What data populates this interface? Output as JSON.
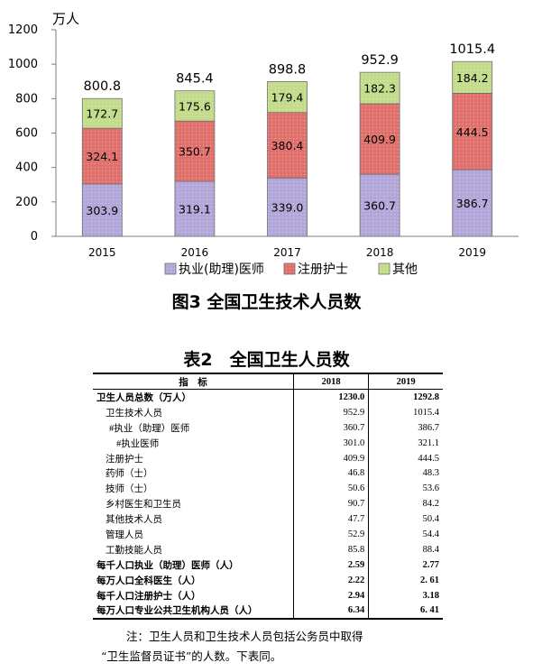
{
  "chart_data": {
    "type": "bar",
    "stacked": true,
    "y_unit": "万人",
    "categories": [
      "2015",
      "2016",
      "2017",
      "2018",
      "2019"
    ],
    "series": [
      {
        "name": "执业(助理)医师",
        "color": "#b3a6d8",
        "values": [
          303.9,
          319.1,
          339.0,
          360.7,
          386.7
        ]
      },
      {
        "name": "注册护士",
        "color": "#e0706c",
        "values": [
          324.1,
          350.7,
          380.4,
          409.9,
          444.5
        ]
      },
      {
        "name": "其他",
        "color": "#c3dc8c",
        "values": [
          172.7,
          175.6,
          179.4,
          182.3,
          184.2
        ]
      }
    ],
    "totals": [
      800.8,
      845.4,
      898.8,
      952.9,
      1015.4
    ],
    "value_labels": [
      [
        "303.9",
        "319.1",
        "339.0",
        "360.7",
        "386.7"
      ],
      [
        "324.1",
        "350.7",
        "380.4",
        "409.9",
        "444.5"
      ],
      [
        "172.7",
        "175.6",
        "179.4",
        "182.3",
        "184.2"
      ]
    ],
    "total_labels": [
      "800.8",
      "845.4",
      "898.8",
      "952.9",
      "1015.4"
    ],
    "ylim": [
      0,
      1200
    ],
    "yticks": [
      0,
      200,
      400,
      600,
      800,
      1000,
      1200
    ],
    "legend_position": "bottom",
    "grid": false,
    "title": "图3  全国卫生技术人员数"
  },
  "table": {
    "title": "表2　全国卫生人员数",
    "header": {
      "label": "指　标",
      "y2018": "2018",
      "y2019": "2019"
    },
    "rows": [
      {
        "name": "卫生人员总数（万人）",
        "v2018": "1230.0",
        "v2019": "1292.8",
        "level": 0
      },
      {
        "name": "卫生技术人员",
        "v2018": "952.9",
        "v2019": "1015.4",
        "level": 1
      },
      {
        "name": "#执业（助理）医师",
        "v2018": "360.7",
        "v2019": "386.7",
        "level": 2
      },
      {
        "name": "#执业医师",
        "v2018": "301.0",
        "v2019": "321.1",
        "level": 3
      },
      {
        "name": "注册护士",
        "v2018": "409.9",
        "v2019": "444.5",
        "level": 1
      },
      {
        "name": "药师（士）",
        "v2018": "46.8",
        "v2019": "48.3",
        "level": 1
      },
      {
        "name": "技师（士）",
        "v2018": "50.6",
        "v2019": "53.6",
        "level": 1
      },
      {
        "name": "乡村医生和卫生员",
        "v2018": "90.7",
        "v2019": "84.2",
        "level": 1
      },
      {
        "name": "其他技术人员",
        "v2018": "47.7",
        "v2019": "50.4",
        "level": 1
      },
      {
        "name": "管理人员",
        "v2018": "52.9",
        "v2019": "54.4",
        "level": 1
      },
      {
        "name": "工勤技能人员",
        "v2018": "85.8",
        "v2019": "88.4",
        "level": 1
      },
      {
        "name": "每千人口执业（助理）医师（人）",
        "v2018": "2.59",
        "v2019": "2.77",
        "level": 0
      },
      {
        "name": "每万人口全科医生（人）",
        "v2018": "2.22",
        "v2019": "2. 61",
        "level": 0
      },
      {
        "name": "每千人口注册护士（人）",
        "v2018": "2.94",
        "v2019": "3.18",
        "level": 0
      },
      {
        "name": "每万人口专业公共卫生机构人员（人）",
        "v2018": "6.34",
        "v2019": "6. 41",
        "level": 0
      }
    ]
  },
  "note": {
    "line1": "注：卫生人员和卫生技术人员包括公务员中取得",
    "line2": "“卫生监督员证书”的人数。下表同。"
  }
}
